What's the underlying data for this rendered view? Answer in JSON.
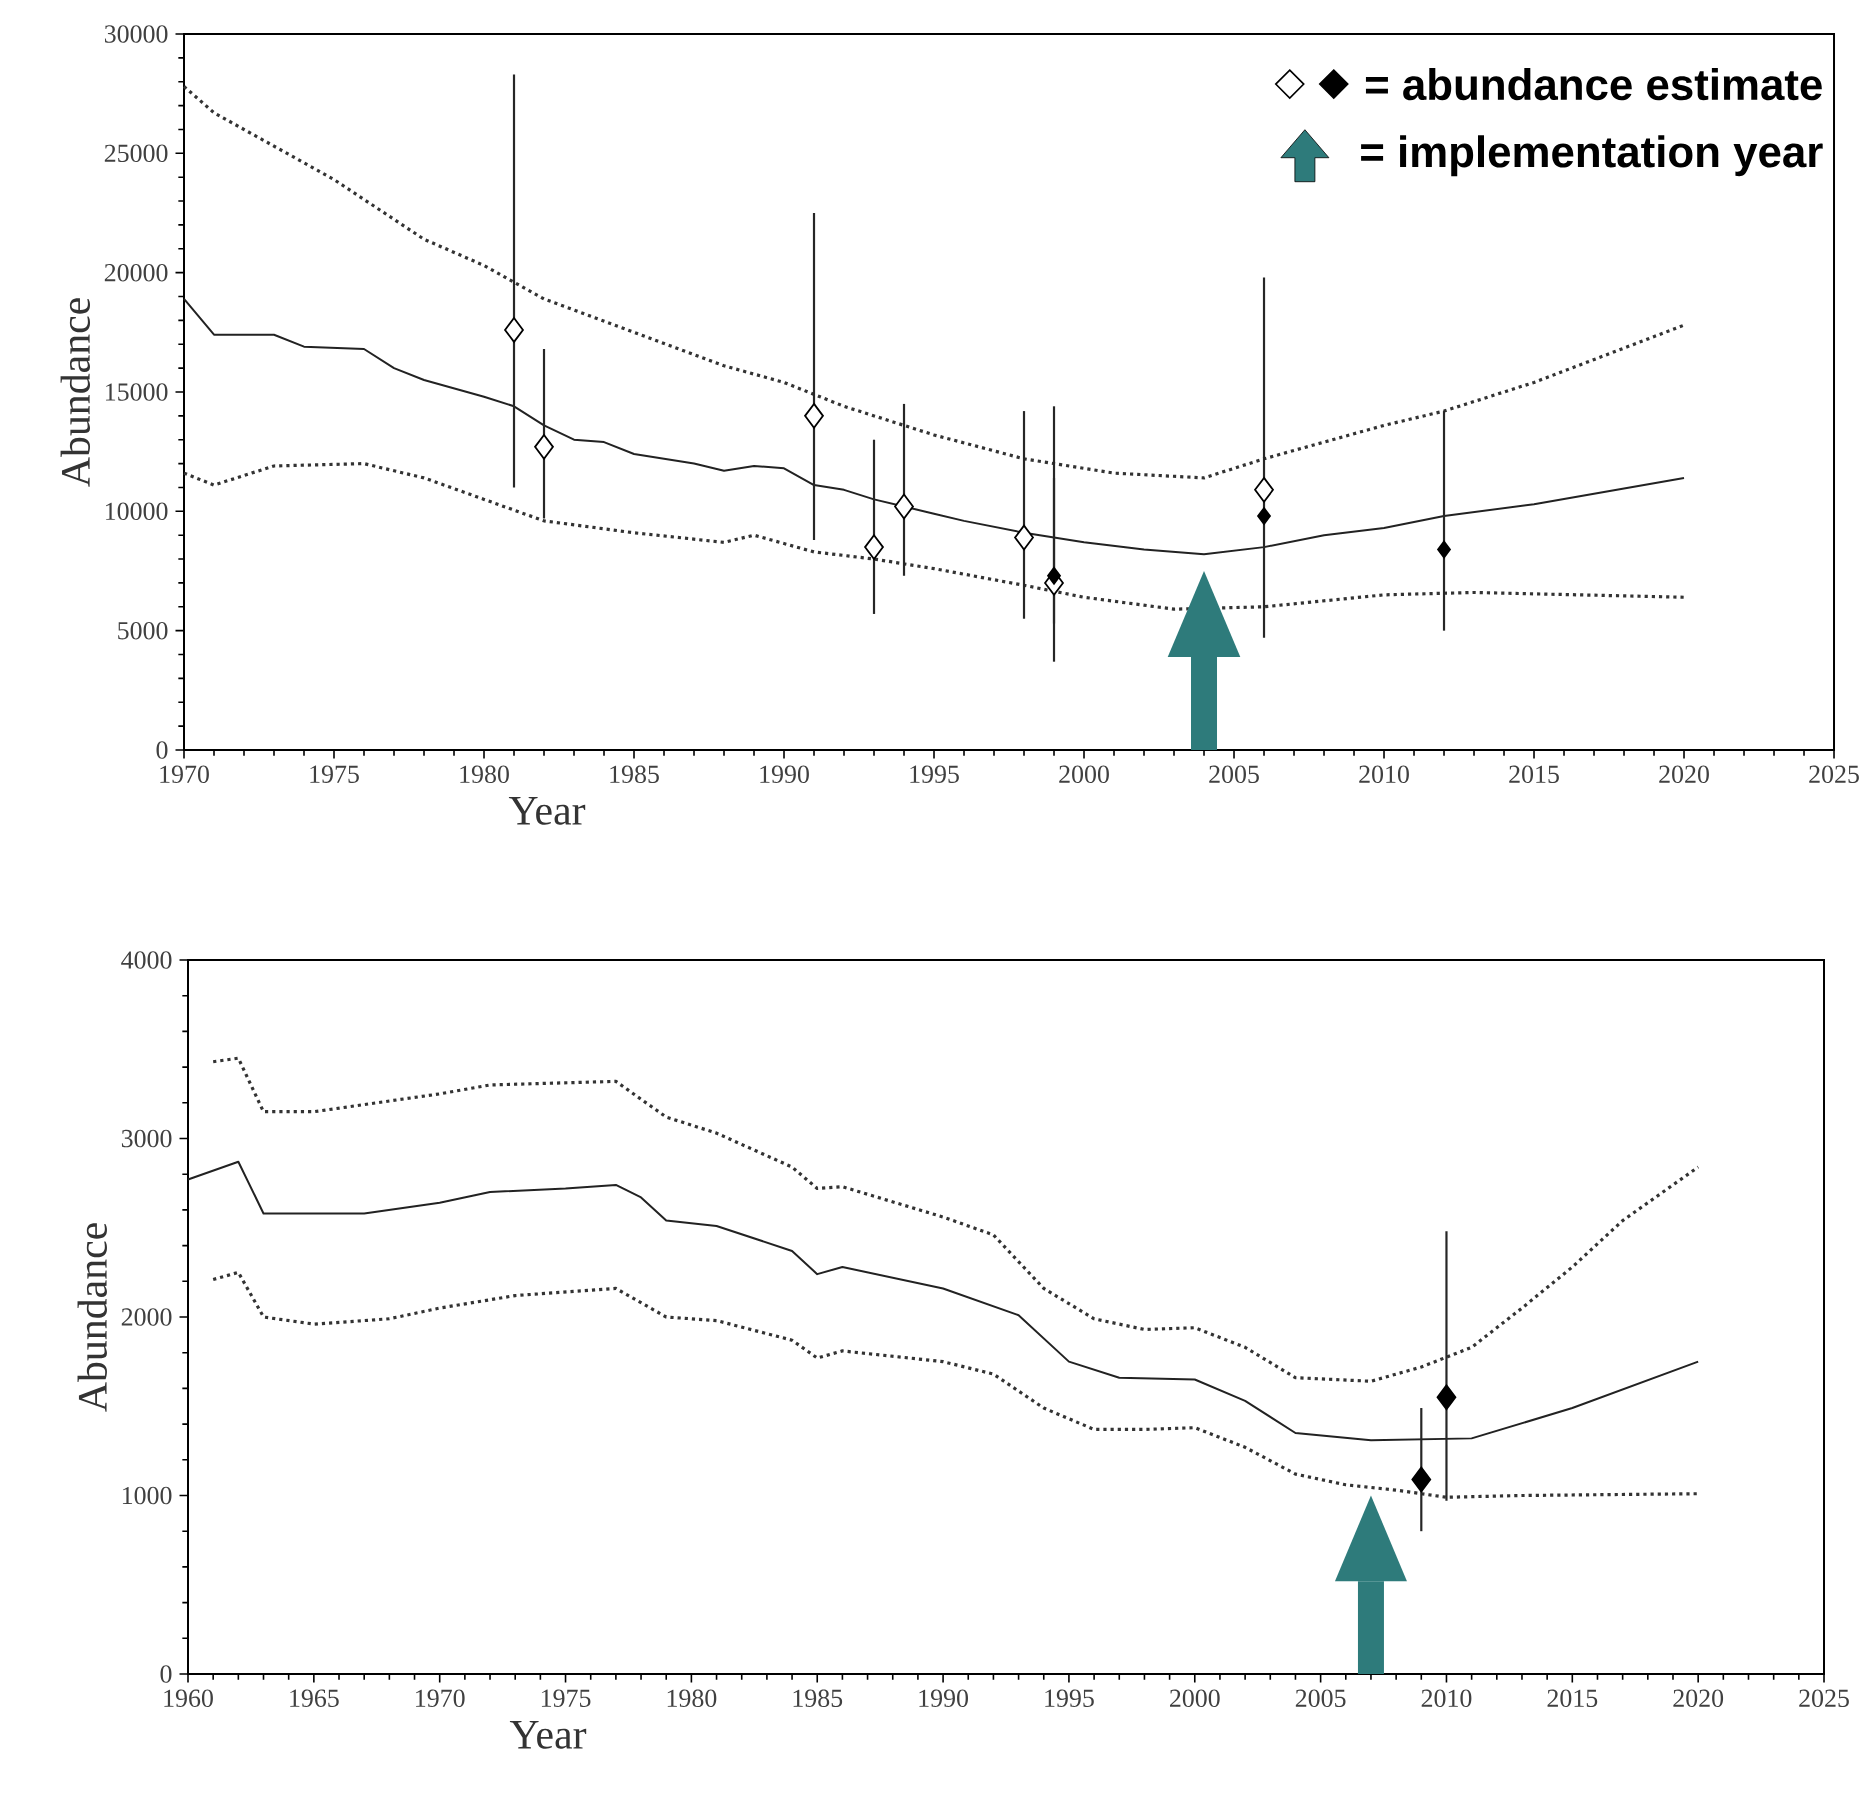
{
  "chart_data": [
    {
      "type": "line",
      "xlabel": "Year",
      "ylabel": "Abundance",
      "xlim": [
        1970,
        2025
      ],
      "ylim": [
        0,
        30000
      ],
      "xticks": [
        1970,
        1975,
        1980,
        1985,
        1990,
        1995,
        2000,
        2005,
        2010,
        2015,
        2020,
        2025
      ],
      "yticks": [
        0,
        5000,
        10000,
        15000,
        20000,
        25000,
        30000
      ],
      "annotations": [
        "= abundance estimate",
        "= implementation year"
      ],
      "ref_lines": [
        {
          "axis": "x",
          "value": 2004,
          "color": "#2e7b7b"
        }
      ],
      "series": [
        {
          "color": "#333333",
          "line_style": "dotted",
          "x": [
            1970,
            1971,
            1975,
            1978,
            1980,
            1982,
            1985,
            1988,
            1990,
            1992,
            1995,
            1998,
            2001,
            2004,
            2006,
            2010,
            2012,
            2015,
            2020
          ],
          "values": [
            27800,
            26700,
            23900,
            21400,
            20300,
            18900,
            17500,
            16100,
            15400,
            14400,
            13200,
            12200,
            11600,
            11400,
            12200,
            13600,
            14200,
            15400,
            17800
          ]
        },
        {
          "color": "#333333",
          "line_style": "dotted",
          "x": [
            1970,
            1971,
            1973,
            1976,
            1978,
            1980,
            1982,
            1985,
            1988,
            1989,
            1991,
            1993,
            1995,
            1998,
            2000,
            2003,
            2006,
            2010,
            2013,
            2020
          ],
          "values": [
            11600,
            11100,
            11900,
            12000,
            11400,
            10500,
            9600,
            9100,
            8700,
            9000,
            8300,
            8000,
            7600,
            6900,
            6400,
            5900,
            6000,
            6500,
            6600,
            6400
          ]
        },
        {
          "color": "#222222",
          "line_style": "solid",
          "x": [
            1970,
            1971,
            1973,
            1974,
            1976,
            1977,
            1978,
            1980,
            1981,
            1982,
            1983,
            1984,
            1985,
            1987,
            1988,
            1989,
            1990,
            1991,
            1992,
            1993,
            1994,
            1995,
            1996,
            1998,
            2000,
            2002,
            2004,
            2006,
            2008,
            2010,
            2012,
            2015,
            2020
          ],
          "values": [
            18900,
            17400,
            17400,
            16900,
            16800,
            16000,
            15500,
            14800,
            14400,
            13600,
            13000,
            12900,
            12400,
            12000,
            11700,
            11900,
            11800,
            11100,
            10900,
            10500,
            10200,
            9900,
            9600,
            9100,
            8700,
            8400,
            8200,
            8500,
            9000,
            9300,
            9800,
            10300,
            11400
          ]
        },
        {
          "type": "scatter",
          "marker": "diamond",
          "color": "#ffffff",
          "x": [
            1981,
            1982,
            1991,
            1993,
            1994,
            1998,
            1999,
            2006
          ],
          "values": [
            17600,
            12700,
            14000,
            8500,
            10200,
            8900,
            7000,
            10900
          ],
          "errors": [
            [
              11000,
              28300
            ],
            [
              9700,
              16800
            ],
            [
              8800,
              22500
            ],
            [
              5700,
              13000
            ],
            [
              7300,
              14500
            ],
            [
              5500,
              14200
            ],
            [
              5300,
              11400
            ],
            [
              4700,
              19800
            ]
          ]
        },
        {
          "type": "scatter",
          "marker": "diamond",
          "color": "#000000",
          "x": [
            1999,
            2006,
            2012
          ],
          "values": [
            7300,
            9800,
            8400
          ],
          "errors": [
            [
              3700,
              14400
            ],
            null,
            [
              5000,
              14200
            ]
          ]
        }
      ]
    },
    {
      "type": "line",
      "xlabel": "Year",
      "ylabel": "Abundance",
      "xlim": [
        1960,
        2025
      ],
      "ylim": [
        0,
        4000
      ],
      "xticks": [
        1960,
        1965,
        1970,
        1975,
        1980,
        1985,
        1990,
        1995,
        2000,
        2005,
        2010,
        2015,
        2020,
        2025
      ],
      "yticks": [
        0,
        1000,
        2000,
        3000,
        4000
      ],
      "ref_lines": [
        {
          "axis": "x",
          "value": 2007,
          "color": "#2e7b7b"
        }
      ],
      "series": [
        {
          "color": "#333333",
          "line_style": "dotted",
          "x": [
            1961,
            1962,
            1963,
            1965,
            1970,
            1972,
            1977,
            1979,
            1981,
            1984,
            1985,
            1986,
            1990,
            1992,
            1994,
            1996,
            1998,
            2000,
            2002,
            2004,
            2007,
            2009,
            2011,
            2013,
            2015,
            2017,
            2020
          ],
          "values": [
            3430,
            3450,
            3150,
            3150,
            3250,
            3300,
            3320,
            3120,
            3030,
            2840,
            2720,
            2730,
            2560,
            2460,
            2160,
            1990,
            1930,
            1940,
            1830,
            1660,
            1640,
            1720,
            1830,
            2050,
            2280,
            2540,
            2840
          ]
        },
        {
          "color": "#333333",
          "line_style": "dotted",
          "x": [
            1961,
            1962,
            1963,
            1965,
            1968,
            1970,
            1973,
            1977,
            1979,
            1981,
            1984,
            1985,
            1986,
            1990,
            1992,
            1994,
            1996,
            1998,
            2000,
            2002,
            2004,
            2006,
            2008,
            2010,
            2013,
            2020
          ],
          "values": [
            2210,
            2250,
            2000,
            1960,
            1990,
            2050,
            2120,
            2160,
            2000,
            1980,
            1870,
            1770,
            1810,
            1750,
            1680,
            1490,
            1370,
            1370,
            1380,
            1270,
            1120,
            1060,
            1030,
            990,
            1000,
            1010
          ]
        },
        {
          "color": "#222222",
          "line_style": "solid",
          "x": [
            1960,
            1962,
            1963,
            1967,
            1970,
            1972,
            1975,
            1977,
            1978,
            1979,
            1981,
            1984,
            1985,
            1986,
            1990,
            1993,
            1995,
            1997,
            2000,
            2002,
            2004,
            2007,
            2011,
            2015,
            2020
          ],
          "values": [
            2770,
            2870,
            2580,
            2580,
            2640,
            2700,
            2720,
            2740,
            2670,
            2540,
            2510,
            2370,
            2240,
            2280,
            2160,
            2010,
            1750,
            1660,
            1650,
            1530,
            1350,
            1310,
            1320,
            1490,
            1750
          ]
        },
        {
          "type": "scatter",
          "marker": "diamond",
          "color": "#000000",
          "x": [
            2009,
            2010
          ],
          "values": [
            1090,
            1550
          ],
          "errors": [
            [
              800,
              1490
            ],
            [
              970,
              2480
            ]
          ]
        }
      ]
    }
  ]
}
